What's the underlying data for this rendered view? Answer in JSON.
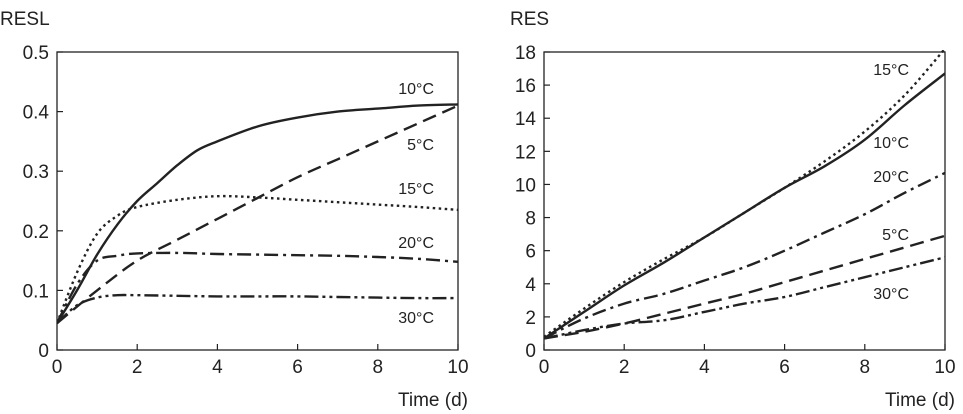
{
  "chart_data": [
    {
      "type": "line",
      "ylabel": "RESL",
      "xlabel": "Time (d)",
      "xlim": [
        0,
        10
      ],
      "ylim": [
        0,
        0.5
      ],
      "xticks": [
        0,
        2,
        4,
        6,
        8,
        10
      ],
      "xtick_labels": [
        "0",
        "2",
        "4",
        "6",
        "8",
        "10"
      ],
      "yticks": [
        0,
        0.1,
        0.2,
        0.3,
        0.4,
        0.5
      ],
      "ytick_labels": [
        "0",
        "0.1",
        "0.2",
        "0.3",
        "0.4",
        "0.5"
      ],
      "grid": false,
      "legend": "inline labels next to curves",
      "series": [
        {
          "name": "10°C",
          "style": "solid",
          "x": [
            0,
            0.5,
            1,
            1.5,
            2,
            2.5,
            3,
            3.5,
            4,
            5,
            6,
            7,
            8,
            9,
            10
          ],
          "y": [
            0.045,
            0.1,
            0.16,
            0.21,
            0.25,
            0.28,
            0.31,
            0.335,
            0.35,
            0.375,
            0.39,
            0.4,
            0.405,
            0.41,
            0.412
          ]
        },
        {
          "name": "5°C",
          "style": "dashed",
          "x": [
            0,
            1,
            2,
            3,
            4,
            5,
            6,
            7,
            8,
            9,
            10
          ],
          "y": [
            0.045,
            0.1,
            0.15,
            0.185,
            0.22,
            0.255,
            0.29,
            0.32,
            0.35,
            0.38,
            0.41
          ]
        },
        {
          "name": "15°C",
          "style": "dotted",
          "x": [
            0,
            0.5,
            1,
            1.5,
            2,
            3,
            4,
            5,
            6,
            7,
            8,
            9,
            10
          ],
          "y": [
            0.045,
            0.13,
            0.195,
            0.225,
            0.24,
            0.252,
            0.258,
            0.256,
            0.252,
            0.248,
            0.244,
            0.24,
            0.235
          ]
        },
        {
          "name": "20°C",
          "style": "dash-dot",
          "x": [
            0,
            0.5,
            1,
            1.5,
            2,
            3,
            4,
            5,
            6,
            7,
            8,
            9,
            10
          ],
          "y": [
            0.045,
            0.11,
            0.15,
            0.158,
            0.162,
            0.163,
            0.161,
            0.16,
            0.159,
            0.158,
            0.156,
            0.153,
            0.148
          ]
        },
        {
          "name": "30°C",
          "style": "dash-dot-dot",
          "x": [
            0,
            0.5,
            1,
            1.5,
            2,
            3,
            4,
            5,
            6,
            7,
            8,
            9,
            10
          ],
          "y": [
            0.045,
            0.075,
            0.088,
            0.092,
            0.092,
            0.091,
            0.09,
            0.09,
            0.09,
            0.089,
            0.088,
            0.087,
            0.087
          ]
        }
      ]
    },
    {
      "type": "line",
      "ylabel": "RES",
      "xlabel": "Time (d)",
      "xlim": [
        0,
        10
      ],
      "ylim": [
        0,
        18
      ],
      "xticks": [
        0,
        2,
        4,
        6,
        8,
        10
      ],
      "xtick_labels": [
        "0",
        "2",
        "4",
        "6",
        "8",
        "10"
      ],
      "yticks": [
        0,
        2,
        4,
        6,
        8,
        10,
        12,
        14,
        16,
        18
      ],
      "ytick_labels": [
        "0",
        "2",
        "4",
        "6",
        "8",
        "10",
        "12",
        "14",
        "16",
        "18"
      ],
      "grid": false,
      "legend": "inline labels next to curves",
      "series": [
        {
          "name": "15°C",
          "style": "dotted",
          "x": [
            0,
            1,
            2,
            3,
            4,
            5,
            6,
            7,
            8,
            9,
            10
          ],
          "y": [
            0.8,
            2.5,
            4.1,
            5.5,
            6.8,
            8.3,
            9.8,
            11.4,
            13.2,
            15.4,
            18.2
          ]
        },
        {
          "name": "10°C",
          "style": "solid",
          "x": [
            0,
            1,
            2,
            3,
            4,
            5,
            6,
            7,
            8,
            9,
            10
          ],
          "y": [
            0.7,
            2.3,
            3.9,
            5.3,
            6.8,
            8.3,
            9.8,
            11.1,
            12.7,
            14.8,
            16.7
          ]
        },
        {
          "name": "20°C",
          "style": "dash-dot",
          "x": [
            0,
            1,
            2,
            3,
            4,
            5,
            6,
            7,
            8,
            9,
            10
          ],
          "y": [
            0.7,
            1.9,
            2.8,
            3.4,
            4.2,
            5.0,
            6.0,
            7.1,
            8.2,
            9.5,
            10.7
          ]
        },
        {
          "name": "5°C",
          "style": "dashed",
          "x": [
            0,
            1,
            2,
            3,
            4,
            5,
            6,
            7,
            8,
            9,
            10
          ],
          "y": [
            0.7,
            1.1,
            1.6,
            2.2,
            2.8,
            3.4,
            4.1,
            4.8,
            5.5,
            6.2,
            6.9
          ]
        },
        {
          "name": "30°C",
          "style": "dash-dot-dot",
          "x": [
            0,
            1,
            2,
            3,
            4,
            5,
            6,
            7,
            8,
            9,
            10
          ],
          "y": [
            0.7,
            1.2,
            1.6,
            1.8,
            2.3,
            2.8,
            3.2,
            3.8,
            4.4,
            5.0,
            5.6
          ]
        }
      ]
    }
  ]
}
